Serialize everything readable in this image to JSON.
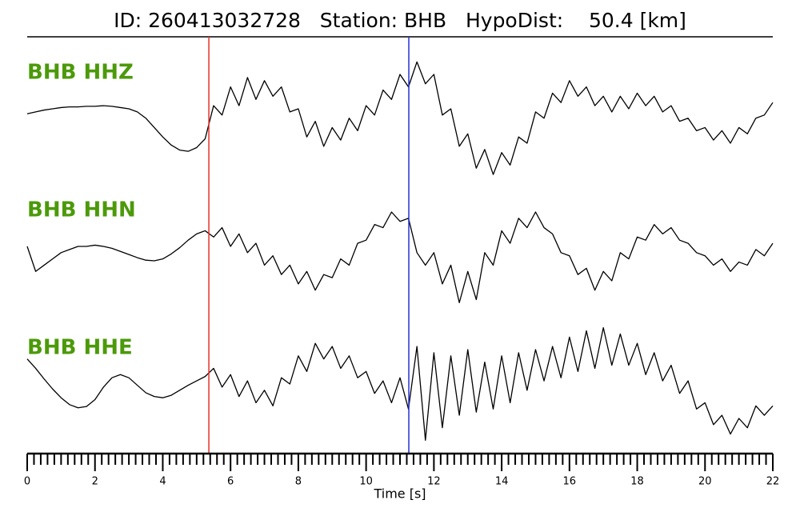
{
  "chart_data": {
    "type": "seismogram",
    "title": "ID: 260413032728   Station: BHB   HypoDist:    50.4 [km]",
    "xlabel": "Time [s]",
    "xlim": [
      0,
      22
    ],
    "xticks": [
      0,
      2,
      4,
      6,
      8,
      10,
      12,
      14,
      16,
      18,
      20,
      22
    ],
    "ylim": [
      -1.1,
      1.1
    ],
    "label_color": "#4c9a0a",
    "x": [
      0,
      0.25,
      0.5,
      0.75,
      1,
      1.25,
      1.5,
      1.75,
      2,
      2.25,
      2.5,
      2.75,
      3,
      3.25,
      3.5,
      3.75,
      4,
      4.25,
      4.5,
      4.75,
      5,
      5.25,
      5.5,
      5.75,
      6,
      6.25,
      6.5,
      6.75,
      7,
      7.25,
      7.5,
      7.75,
      8,
      8.25,
      8.5,
      8.75,
      9,
      9.25,
      9.5,
      9.75,
      10,
      10.25,
      10.5,
      10.75,
      11,
      11.25,
      11.5,
      11.75,
      12,
      12.25,
      12.5,
      12.75,
      13,
      13.25,
      13.5,
      13.75,
      14,
      14.25,
      14.5,
      14.75,
      15,
      15.25,
      15.5,
      15.75,
      16,
      16.25,
      16.5,
      16.75,
      17,
      17.25,
      17.5,
      17.75,
      18,
      18.25,
      18.5,
      18.75,
      19,
      19.25,
      19.5,
      19.75,
      20,
      20.25,
      20.5,
      20.75,
      21,
      21.25,
      21.5,
      21.75,
      22
    ],
    "series": [
      {
        "name": "BHB HHZ",
        "color": "#000000",
        "values": [
          -0.08,
          -0.05,
          -0.02,
          0,
          0.02,
          0.03,
          0.03,
          0.04,
          0.04,
          0.05,
          0.04,
          0.02,
          0,
          -0.05,
          -0.15,
          -0.3,
          -0.45,
          -0.58,
          -0.66,
          -0.68,
          -0.62,
          -0.48,
          0.05,
          -0.1,
          0.35,
          0.05,
          0.5,
          0.15,
          0.45,
          0.2,
          0.35,
          -0.05,
          0,
          -0.45,
          -0.2,
          -0.6,
          -0.3,
          -0.5,
          -0.15,
          -0.35,
          0.05,
          -0.1,
          0.3,
          0.15,
          0.55,
          0.35,
          0.75,
          0.4,
          0.55,
          -0.1,
          0,
          -0.6,
          -0.4,
          -0.95,
          -0.65,
          -1.05,
          -0.7,
          -0.9,
          -0.45,
          -0.55,
          -0.05,
          -0.15,
          0.25,
          0.1,
          0.45,
          0.2,
          0.35,
          0.05,
          0.2,
          -0.05,
          0.2,
          0,
          0.25,
          0.05,
          0.2,
          -0.05,
          0.05,
          -0.2,
          -0.15,
          -0.35,
          -0.3,
          -0.5,
          -0.35,
          -0.55,
          -0.3,
          -0.4,
          -0.15,
          -0.1,
          0.1
        ]
      },
      {
        "name": "BHB HHN",
        "color": "#000000",
        "values": [
          0,
          -0.4,
          -0.3,
          -0.2,
          -0.1,
          -0.05,
          0,
          0,
          0.02,
          0,
          -0.03,
          -0.08,
          -0.13,
          -0.18,
          -0.22,
          -0.23,
          -0.2,
          -0.12,
          -0.02,
          0.1,
          0.2,
          0.25,
          0.15,
          0.3,
          0,
          0.2,
          -0.1,
          0.05,
          -0.3,
          -0.15,
          -0.45,
          -0.3,
          -0.6,
          -0.4,
          -0.7,
          -0.45,
          -0.5,
          -0.2,
          -0.3,
          0.05,
          0.1,
          0.35,
          0.3,
          0.55,
          0.4,
          0.45,
          -0.1,
          -0.3,
          -0.1,
          -0.6,
          -0.3,
          -0.9,
          -0.4,
          -0.85,
          -0.1,
          -0.3,
          0.25,
          0.05,
          0.45,
          0.3,
          0.55,
          0.3,
          0.2,
          -0.1,
          -0.15,
          -0.45,
          -0.35,
          -0.7,
          -0.4,
          -0.55,
          -0.1,
          -0.2,
          0.15,
          0.1,
          0.35,
          0.2,
          0.3,
          0.1,
          0.05,
          -0.1,
          -0.15,
          -0.3,
          -0.2,
          -0.4,
          -0.25,
          -0.3,
          -0.05,
          -0.15,
          0.05
        ]
      },
      {
        "name": "BHB HHE",
        "color": "#000000",
        "values": [
          0.4,
          0.25,
          0.08,
          -0.08,
          -0.22,
          -0.33,
          -0.38,
          -0.36,
          -0.25,
          -0.05,
          0.1,
          0.15,
          0.1,
          -0.02,
          -0.14,
          -0.2,
          -0.22,
          -0.18,
          -0.1,
          -0.02,
          0.05,
          0.12,
          0.25,
          -0.05,
          0.15,
          -0.2,
          0.05,
          -0.3,
          -0.1,
          -0.35,
          0.1,
          0,
          0.45,
          0.2,
          0.65,
          0.4,
          0.6,
          0.25,
          0.45,
          0.1,
          0.2,
          -0.15,
          0.05,
          -0.3,
          0.1,
          -0.4,
          0.6,
          -0.9,
          0.5,
          -0.7,
          0.45,
          -0.5,
          0.55,
          -0.45,
          0.35,
          -0.4,
          0.45,
          -0.3,
          0.5,
          -0.1,
          0.55,
          0.05,
          0.6,
          0.1,
          0.75,
          0.2,
          0.85,
          0.25,
          0.9,
          0.3,
          0.8,
          0.3,
          0.65,
          0.15,
          0.5,
          0.05,
          0.3,
          -0.15,
          0.05,
          -0.4,
          -0.3,
          -0.65,
          -0.5,
          -0.8,
          -0.55,
          -0.7,
          -0.35,
          -0.5,
          -0.35
        ]
      }
    ],
    "vlines": [
      {
        "x": 5.36,
        "color": "#e8302a"
      },
      {
        "x": 11.26,
        "color": "#2430d8"
      }
    ]
  }
}
